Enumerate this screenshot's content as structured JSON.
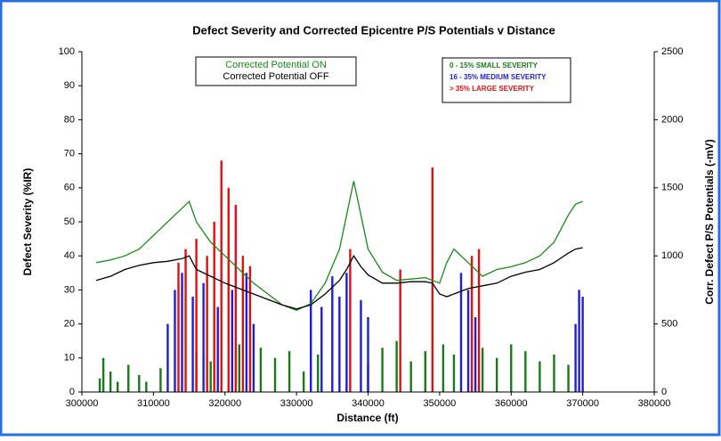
{
  "chart_data": {
    "type": "bar",
    "title": "Defect Severity and Corrected Epicentre P/S Potentials v Distance",
    "x_label": "Distance (ft)",
    "y_label": "Defect Severity (%IR)",
    "y2_label": "Corr. Defect P/S Potentials (-mV)",
    "xlim": [
      300000,
      380000
    ],
    "xticks": [
      300000,
      310000,
      320000,
      330000,
      340000,
      350000,
      360000,
      370000,
      380000
    ],
    "ylim": [
      0,
      100
    ],
    "yticks": [
      0,
      10,
      20,
      30,
      40,
      50,
      60,
      70,
      80,
      90,
      100
    ],
    "y2lim": [
      0,
      2500
    ],
    "y2ticks": [
      0,
      500,
      1000,
      1500,
      2000,
      2500
    ],
    "grid": false,
    "series": [
      {
        "name": "0 - 15%  SMALL SEVERITY",
        "type": "bar",
        "color": "#1a7a1a",
        "x": [
          302500,
          303000,
          304000,
          305000,
          306500,
          308000,
          309000,
          311000,
          316000,
          318000,
          322000,
          325000,
          327000,
          329000,
          331000,
          333000,
          340000,
          342000,
          344000,
          346000,
          348000,
          350500,
          352000,
          356000,
          358000,
          360000,
          362000,
          364000,
          366000,
          368000
        ],
        "values": [
          4,
          10,
          6,
          3,
          8,
          5,
          3,
          7,
          12,
          9,
          14,
          13,
          10,
          12,
          6,
          11,
          8,
          13,
          15,
          9,
          12,
          14,
          11,
          13,
          10,
          14,
          12,
          9,
          11,
          8
        ]
      },
      {
        "name": "16 - 35% MEDIUM SEVERITY",
        "type": "bar",
        "color": "#1f1fd0",
        "x": [
          312000,
          313000,
          314000,
          315500,
          317000,
          319000,
          321000,
          323000,
          324000,
          332000,
          333500,
          335000,
          336000,
          337000,
          339000,
          340000,
          353000,
          354000,
          355000,
          369000,
          369500,
          370000
        ],
        "values": [
          20,
          30,
          35,
          28,
          32,
          25,
          30,
          35,
          20,
          30,
          25,
          34,
          28,
          35,
          27,
          22,
          35,
          30,
          22,
          20,
          30,
          28
        ]
      },
      {
        "name": ">  35%   LARGE SEVERITY",
        "type": "bar",
        "color": "#e01010",
        "x": [
          313500,
          314500,
          316000,
          317500,
          318500,
          319500,
          320500,
          321500,
          322500,
          323500,
          337500,
          344500,
          349000,
          354500,
          355500
        ],
        "values": [
          38,
          42,
          45,
          40,
          50,
          68,
          60,
          55,
          40,
          37,
          42,
          36,
          66,
          40,
          42
        ]
      },
      {
        "name": "Corrected Potential  ON",
        "type": "line",
        "axis": "y2",
        "color": "#1a8a1a",
        "x": [
          302000,
          304000,
          306000,
          308000,
          310000,
          312000,
          314000,
          315000,
          316000,
          318000,
          320000,
          322000,
          324000,
          326000,
          328000,
          330000,
          332000,
          334000,
          336000,
          337000,
          338000,
          339000,
          340000,
          342000,
          344000,
          346000,
          348000,
          349000,
          350000,
          351000,
          352000,
          354000,
          356000,
          358000,
          360000,
          362000,
          364000,
          366000,
          368000,
          369000,
          370000
        ],
        "values": [
          950,
          970,
          1000,
          1050,
          1150,
          1250,
          1350,
          1400,
          1250,
          1100,
          1000,
          900,
          800,
          720,
          640,
          600,
          650,
          800,
          1050,
          1300,
          1550,
          1300,
          1050,
          880,
          820,
          830,
          840,
          820,
          800,
          950,
          1050,
          950,
          850,
          900,
          920,
          950,
          1000,
          1100,
          1300,
          1380,
          1400
        ]
      },
      {
        "name": "Corrected Potential  OFF",
        "type": "line",
        "axis": "y2",
        "color": "#000000",
        "x": [
          302000,
          304000,
          306000,
          308000,
          310000,
          312000,
          314000,
          315000,
          316000,
          318000,
          320000,
          322000,
          324000,
          326000,
          328000,
          330000,
          332000,
          334000,
          336000,
          337000,
          338000,
          339000,
          340000,
          342000,
          344000,
          346000,
          348000,
          349000,
          350000,
          351000,
          352000,
          354000,
          356000,
          358000,
          360000,
          362000,
          364000,
          366000,
          368000,
          369000,
          370000
        ],
        "values": [
          820,
          850,
          900,
          930,
          950,
          960,
          980,
          1000,
          900,
          850,
          800,
          760,
          720,
          680,
          640,
          610,
          640,
          720,
          820,
          900,
          1000,
          920,
          860,
          800,
          800,
          810,
          810,
          800,
          720,
          700,
          720,
          760,
          780,
          800,
          850,
          880,
          900,
          950,
          1020,
          1050,
          1060
        ]
      }
    ]
  }
}
